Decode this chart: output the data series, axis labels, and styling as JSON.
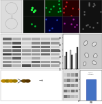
{
  "bg_color": "#ffffff",
  "panels": {
    "A_diagram": {
      "bg": "#e8e8e8"
    },
    "A_fluor_top": {
      "bg": "#0a1a0a"
    },
    "A_fluor_bot": {
      "bg": "#0a120a"
    },
    "B_grid": {
      "bg": "#111111",
      "colors": [
        "#003300",
        "#330000",
        "#000033",
        "#220022"
      ]
    },
    "C_grid": {
      "bg": "#111111"
    },
    "D_wb": {
      "bg": "#d8d8d8"
    },
    "D_bars": {
      "bg": "#ffffff"
    },
    "E_tem": {
      "bg": "#cccccc"
    },
    "F_workflow": {
      "bg": "#ffffff"
    },
    "G_wb2": {
      "bg": "#d0d0d0"
    },
    "H_bar": {
      "bar_color": "#4472c4",
      "bar_edge": "#2244aa",
      "bg": "#ffffff",
      "ylim": [
        0,
        1.4
      ],
      "value": 1.0
    }
  }
}
